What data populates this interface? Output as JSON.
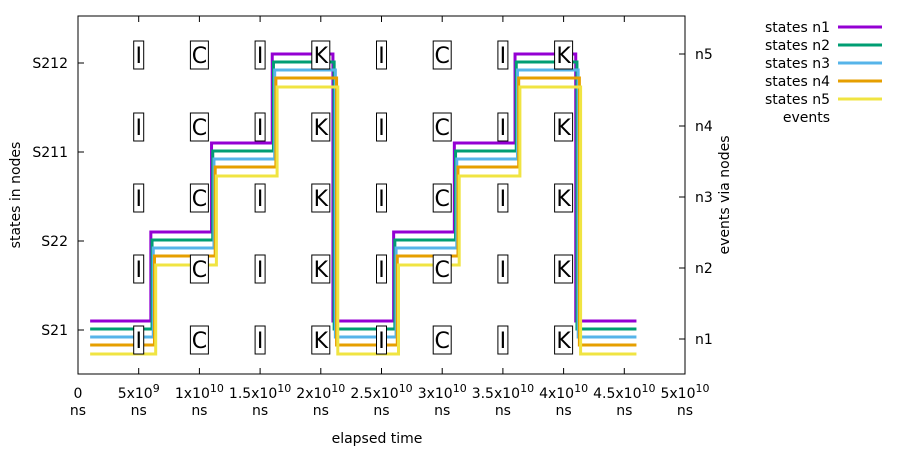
{
  "chart_data": {
    "type": "line",
    "title": "",
    "xlabel": "elapsed time",
    "ylabel": "states in nodes",
    "y2label": "events via nodes",
    "xlim": [
      0,
      50000000000
    ],
    "x_ticks": [
      {
        "value": 0,
        "label": "0",
        "unit": "ns"
      },
      {
        "value": 5000000000,
        "label": "5x10^9",
        "unit": "ns"
      },
      {
        "value": 10000000000,
        "label": "1x10^10",
        "unit": "ns"
      },
      {
        "value": 15000000000,
        "label": "1.5x10^10",
        "unit": "ns"
      },
      {
        "value": 20000000000,
        "label": "2x10^10",
        "unit": "ns"
      },
      {
        "value": 25000000000,
        "label": "2.5x10^10",
        "unit": "ns"
      },
      {
        "value": 30000000000,
        "label": "3x10^10",
        "unit": "ns"
      },
      {
        "value": 35000000000,
        "label": "3.5x10^10",
        "unit": "ns"
      },
      {
        "value": 40000000000,
        "label": "4x10^10",
        "unit": "ns"
      },
      {
        "value": 45000000000,
        "label": "4.5x10^10",
        "unit": "ns"
      },
      {
        "value": 50000000000,
        "label": "5x10^10",
        "unit": "ns"
      }
    ],
    "y_categories": [
      "S21",
      "S22",
      "S211",
      "S212"
    ],
    "y2_categories": [
      "n1",
      "n2",
      "n3",
      "n4",
      "n5"
    ],
    "grid": false,
    "legend_position": "outside-top-right",
    "series": [
      {
        "name": "states n1",
        "color": "#9400d3",
        "steps": [
          [
            1000000000,
            "S21"
          ],
          [
            6000000000,
            "S22"
          ],
          [
            11000000000,
            "S211"
          ],
          [
            16000000000,
            "S212"
          ],
          [
            21000000000,
            "S21"
          ],
          [
            26000000000,
            "S22"
          ],
          [
            31000000000,
            "S211"
          ],
          [
            36000000000,
            "S212"
          ],
          [
            41000000000,
            "S21"
          ],
          [
            46000000000,
            "S21"
          ]
        ]
      },
      {
        "name": "states n2",
        "color": "#009e73",
        "steps": [
          [
            1000000000,
            "S21"
          ],
          [
            6100000000,
            "S22"
          ],
          [
            11100000000,
            "S211"
          ],
          [
            16100000000,
            "S212"
          ],
          [
            21100000000,
            "S21"
          ],
          [
            26100000000,
            "S22"
          ],
          [
            31100000000,
            "S211"
          ],
          [
            36100000000,
            "S212"
          ],
          [
            41100000000,
            "S21"
          ],
          [
            46000000000,
            "S21"
          ]
        ]
      },
      {
        "name": "states n3",
        "color": "#56b4e9",
        "steps": [
          [
            1000000000,
            "S21"
          ],
          [
            6200000000,
            "S22"
          ],
          [
            11200000000,
            "S211"
          ],
          [
            16200000000,
            "S212"
          ],
          [
            21200000000,
            "S21"
          ],
          [
            26200000000,
            "S22"
          ],
          [
            31200000000,
            "S211"
          ],
          [
            36200000000,
            "S212"
          ],
          [
            41200000000,
            "S21"
          ],
          [
            46000000000,
            "S21"
          ]
        ]
      },
      {
        "name": "states n4",
        "color": "#e69f00",
        "steps": [
          [
            1000000000,
            "S21"
          ],
          [
            6300000000,
            "S22"
          ],
          [
            11300000000,
            "S211"
          ],
          [
            16300000000,
            "S212"
          ],
          [
            21300000000,
            "S21"
          ],
          [
            26300000000,
            "S22"
          ],
          [
            31300000000,
            "S211"
          ],
          [
            36300000000,
            "S212"
          ],
          [
            41300000000,
            "S21"
          ],
          [
            46000000000,
            "S21"
          ]
        ]
      },
      {
        "name": "states n5",
        "color": "#f0e442",
        "steps": [
          [
            1000000000,
            "S21"
          ],
          [
            6400000000,
            "S22"
          ],
          [
            11400000000,
            "S211"
          ],
          [
            16400000000,
            "S212"
          ],
          [
            21400000000,
            "S21"
          ],
          [
            26400000000,
            "S22"
          ],
          [
            31400000000,
            "S211"
          ],
          [
            36400000000,
            "S212"
          ],
          [
            41400000000,
            "S21"
          ],
          [
            46000000000,
            "S21"
          ]
        ]
      }
    ],
    "events": {
      "name": "events",
      "x": [
        5000000000,
        10000000000,
        15000000000,
        20000000000,
        25000000000,
        30000000000,
        35000000000,
        40000000000
      ],
      "labels": [
        "I",
        "C",
        "I",
        "K",
        "I",
        "C",
        "I",
        "K"
      ],
      "nodes": [
        "n1",
        "n2",
        "n3",
        "n4",
        "n5"
      ]
    }
  }
}
